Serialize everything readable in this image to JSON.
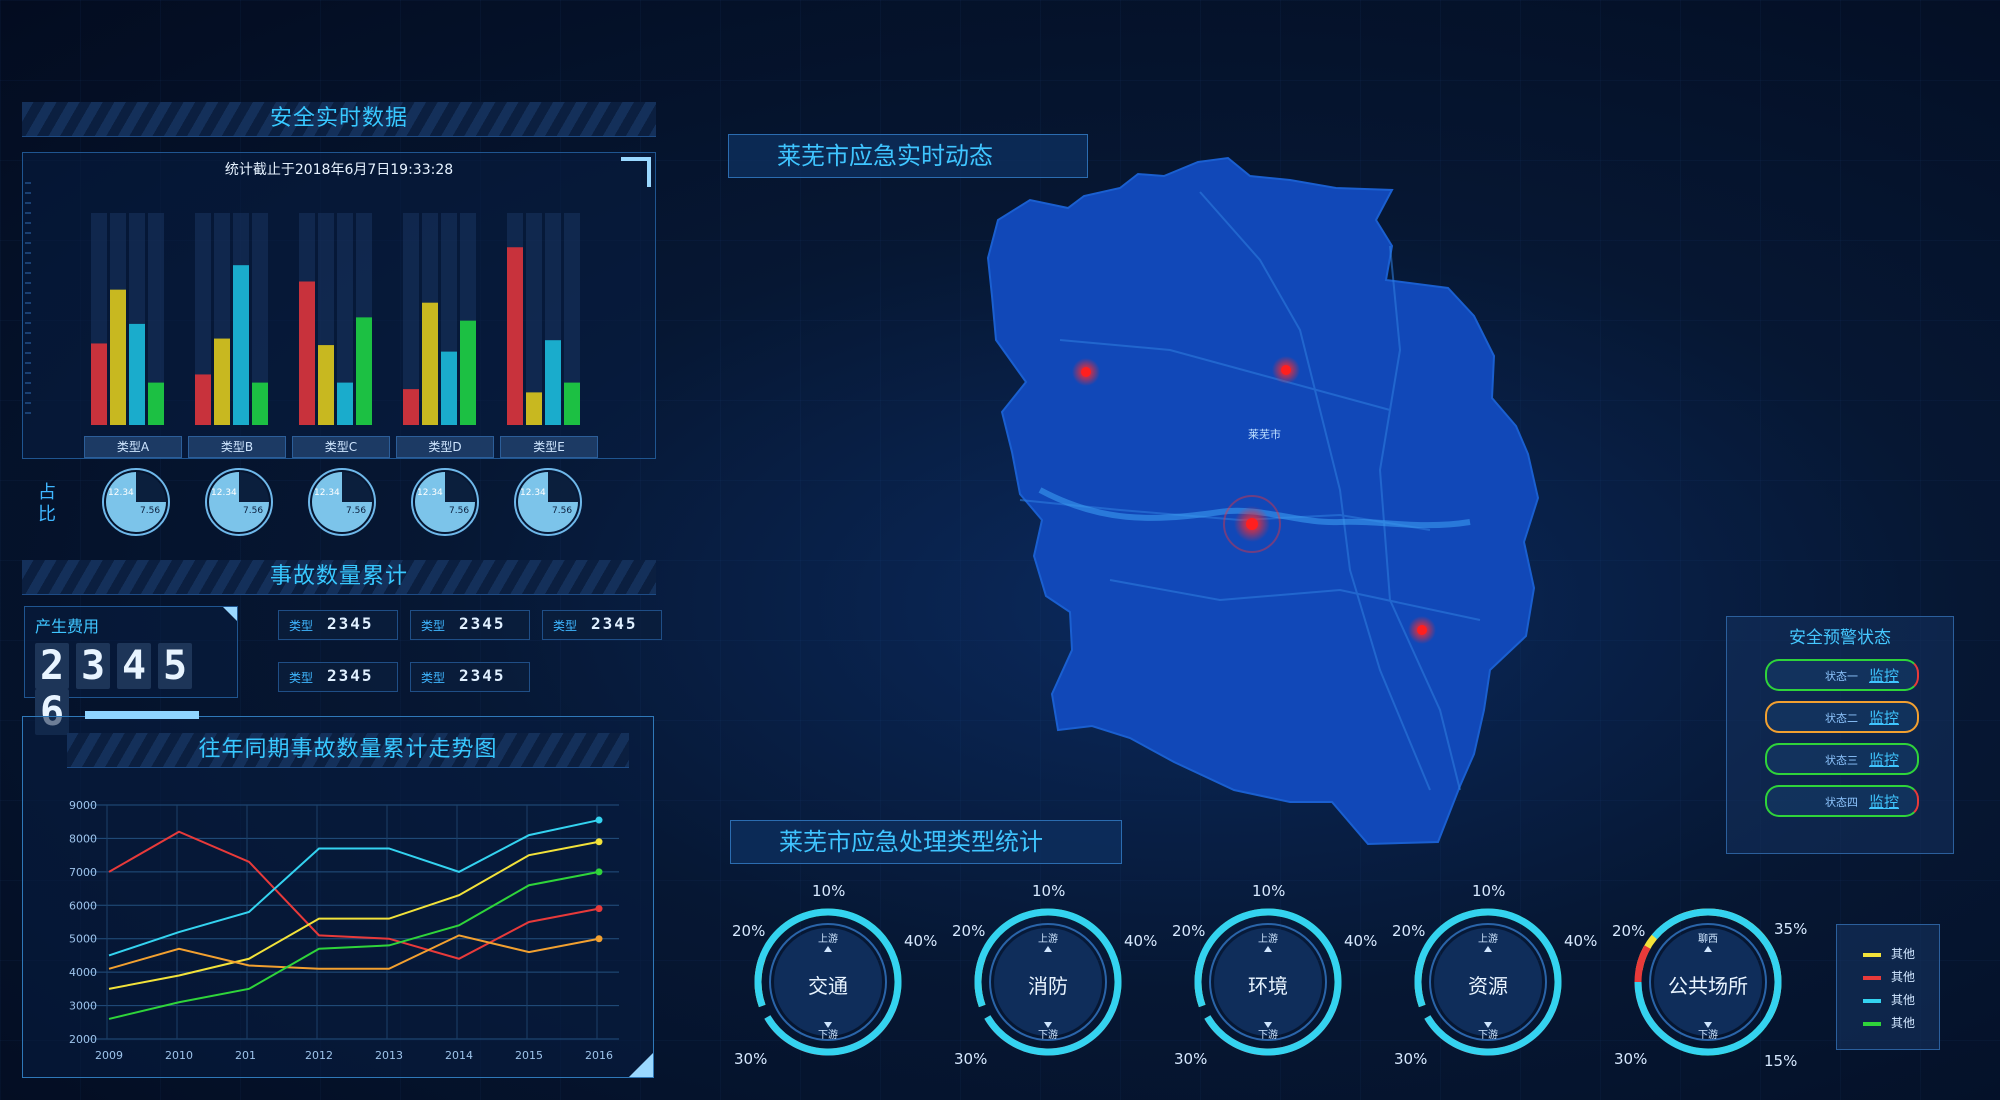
{
  "safety": {
    "title": "安全实时数据",
    "timestamp": "统计截止于2018年6月7日19:33:28",
    "categories": [
      "类型A",
      "类型B",
      "类型C",
      "类型D",
      "类型E"
    ],
    "ratio_label": "占比",
    "pie_value_a": "12.34",
    "pie_value_b": "7.56"
  },
  "chart_data": [
    {
      "type": "bar",
      "categories": [
        "类型A",
        "类型B",
        "类型C",
        "类型D",
        "类型E"
      ],
      "series": [
        {
          "color": "#c8323c",
          "values": [
            50,
            31,
            88,
            22,
            109
          ]
        },
        {
          "color": "#c8b820",
          "values": [
            83,
            53,
            49,
            75,
            20
          ]
        },
        {
          "color": "#1aaccc",
          "values": [
            62,
            98,
            26,
            45,
            52
          ]
        },
        {
          "color": "#1cc043",
          "values": [
            26,
            26,
            66,
            64,
            26
          ]
        }
      ],
      "ylim": [
        0,
        130
      ]
    },
    {
      "type": "line",
      "title": "往年同期事故数量累计走势图",
      "x": [
        "2009",
        "2010",
        "201",
        "2012",
        "2013",
        "2014",
        "2015",
        "2016"
      ],
      "ylim": [
        2000,
        9000
      ],
      "yticks": [
        2000,
        3000,
        4000,
        5000,
        6000,
        7000,
        8000,
        9000
      ],
      "series": [
        {
          "color": "#e83a3a",
          "values": [
            7000,
            8200,
            7300,
            5100,
            5000,
            4400,
            5500,
            5900
          ]
        },
        {
          "color": "#34d3f0",
          "values": [
            4500,
            5200,
            5800,
            7700,
            7700,
            7000,
            8100,
            8550
          ]
        },
        {
          "color": "#f2e23a",
          "values": [
            3500,
            3900,
            4400,
            5600,
            5600,
            6300,
            7500,
            7900
          ]
        },
        {
          "color": "#f2a030",
          "values": [
            4100,
            4700,
            4200,
            4100,
            4100,
            5100,
            4600,
            5000
          ]
        },
        {
          "color": "#2fd43a",
          "values": [
            2600,
            3100,
            3500,
            4700,
            4800,
            5400,
            6600,
            7000
          ]
        }
      ]
    }
  ],
  "accidents": {
    "title": "事故数量累计",
    "cost_label": "产生费用",
    "cost_digits": [
      "2",
      "3",
      "4",
      "5",
      "6"
    ],
    "counters": [
      {
        "label": "类型",
        "value": "2345"
      },
      {
        "label": "类型",
        "value": "2345"
      },
      {
        "label": "类型",
        "value": "2345"
      },
      {
        "label": "类型",
        "value": "2345"
      },
      {
        "label": "类型",
        "value": "2345"
      }
    ]
  },
  "map": {
    "title": "莱芜市应急实时动态",
    "city_label": "莱芜市"
  },
  "warning": {
    "title": "安全预警状态",
    "rows": [
      {
        "state": "状态一",
        "action": "监控",
        "color": "#2fd43a",
        "color2": "#e83a3a"
      },
      {
        "state": "状态二",
        "action": "监控",
        "color": "#f2a030",
        "color2": "#f2a030"
      },
      {
        "state": "状态三",
        "action": "监控",
        "color": "#2fd43a",
        "color2": "#2fd43a"
      },
      {
        "state": "状态四",
        "action": "监控",
        "color": "#2fd43a",
        "color2": "#e83a3a"
      }
    ]
  },
  "emergency": {
    "title": "莱芜市应急处理类型统计",
    "up_label": "上游",
    "down_label": "下游",
    "rings": [
      {
        "name": "交通",
        "up": "上游",
        "pct_top": "10%",
        "pct_right": "40%",
        "pct_left": "20%",
        "pct_bottom": "30%"
      },
      {
        "name": "消防",
        "up": "上游",
        "pct_top": "10%",
        "pct_right": "40%",
        "pct_left": "20%",
        "pct_bottom": "30%"
      },
      {
        "name": "环境",
        "up": "上游",
        "pct_top": "10%",
        "pct_right": "40%",
        "pct_left": "20%",
        "pct_bottom": "30%"
      },
      {
        "name": "资源",
        "up": "上游",
        "pct_top": "10%",
        "pct_right": "40%",
        "pct_left": "20%",
        "pct_bottom": "30%"
      },
      {
        "name": "公共场所",
        "up": "聊西",
        "pct_top": "35%",
        "pct_right": "15%",
        "pct_left": "20%",
        "pct_bottom": "30%"
      }
    ],
    "legend": [
      {
        "label": "其他",
        "color": "#f2e23a"
      },
      {
        "label": "其他",
        "color": "#e83a3a"
      },
      {
        "label": "其他",
        "color": "#34d3f0"
      },
      {
        "label": "其他",
        "color": "#2fd43a"
      }
    ]
  }
}
